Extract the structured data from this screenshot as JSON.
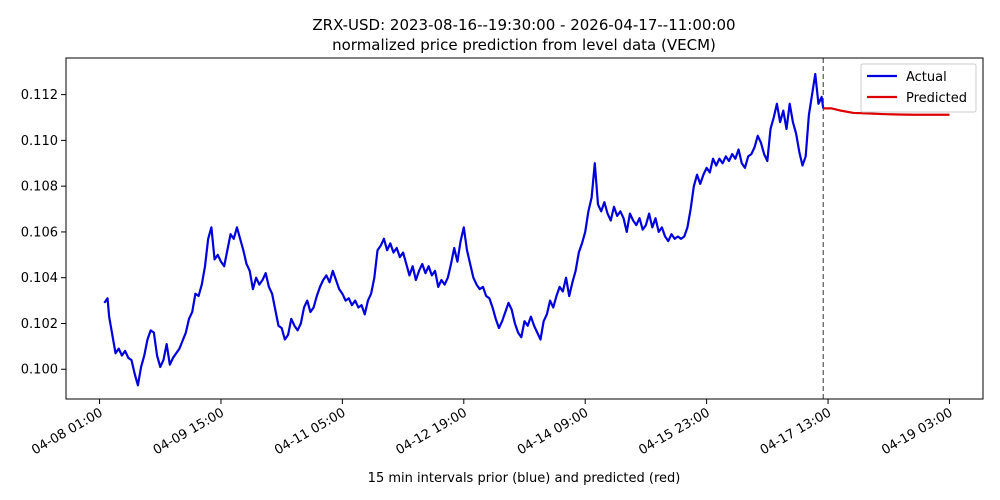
{
  "chart_data": {
    "type": "line",
    "title": "ZRX-USD: 2023-08-16--19:30:00 - 2026-04-17--11:00:00",
    "subtitle": "normalized price prediction from level data (VECM)",
    "xlabel": "15 min intervals prior (blue) and predicted (red)",
    "ylabel": "",
    "x_ticks": [
      "04-08 01:00",
      "04-09 15:00",
      "04-11 05:00",
      "04-12 19:00",
      "04-14 09:00",
      "04-15 23:00",
      "04-17 13:00",
      "04-19 03:00"
    ],
    "x_tick_hours": [
      0,
      38,
      76,
      114,
      152,
      190,
      228,
      266
    ],
    "xlim_hours": [
      -10.5,
      276.5
    ],
    "y_ticks": [
      "0.100",
      "0.102",
      "0.104",
      "0.106",
      "0.108",
      "0.110",
      "0.112"
    ],
    "y_tick_values": [
      0.1,
      0.102,
      0.104,
      0.106,
      0.108,
      0.11,
      0.112
    ],
    "ylim": [
      0.0987,
      0.1136
    ],
    "forecast_start_hour": 226.5,
    "legend": {
      "position": "top-right",
      "entries": [
        "Actual",
        "Predicted"
      ]
    },
    "colors": {
      "actual": "#0000dd",
      "predicted": "#dd0000",
      "divider": "#555555"
    },
    "series": [
      {
        "name": "Actual",
        "points": [
          [
            1.5,
            0.1029
          ],
          [
            2.5,
            0.1031
          ],
          [
            3,
            0.1023
          ],
          [
            4,
            0.1015
          ],
          [
            5,
            0.1007
          ],
          [
            6,
            0.1009
          ],
          [
            7,
            0.1006
          ],
          [
            8,
            0.1008
          ],
          [
            9,
            0.1005
          ],
          [
            10,
            0.1004
          ],
          [
            11,
            0.0998
          ],
          [
            12,
            0.0993
          ],
          [
            13,
            0.1001
          ],
          [
            14,
            0.1006
          ],
          [
            15,
            0.1013
          ],
          [
            16,
            0.1017
          ],
          [
            17,
            0.1016
          ],
          [
            18,
            0.1006
          ],
          [
            19,
            0.1001
          ],
          [
            20,
            0.1004
          ],
          [
            21,
            0.1011
          ],
          [
            22,
            0.1002
          ],
          [
            23,
            0.1005
          ],
          [
            25,
            0.1009
          ],
          [
            27,
            0.1016
          ],
          [
            28,
            0.1022
          ],
          [
            29,
            0.1025
          ],
          [
            30,
            0.1033
          ],
          [
            31,
            0.1032
          ],
          [
            32,
            0.1037
          ],
          [
            33,
            0.1045
          ],
          [
            34,
            0.1057
          ],
          [
            35,
            0.1062
          ],
          [
            36,
            0.1048
          ],
          [
            37,
            0.105
          ],
          [
            38,
            0.1047
          ],
          [
            39,
            0.1045
          ],
          [
            40,
            0.1052
          ],
          [
            41,
            0.1059
          ],
          [
            42,
            0.1057
          ],
          [
            43,
            0.1062
          ],
          [
            44,
            0.1057
          ],
          [
            45,
            0.1052
          ],
          [
            46,
            0.1046
          ],
          [
            47,
            0.1043
          ],
          [
            48,
            0.1035
          ],
          [
            49,
            0.104
          ],
          [
            50,
            0.1037
          ],
          [
            51,
            0.1039
          ],
          [
            52,
            0.1042
          ],
          [
            53,
            0.1036
          ],
          [
            54,
            0.1033
          ],
          [
            55,
            0.1026
          ],
          [
            56,
            0.1019
          ],
          [
            57,
            0.1018
          ],
          [
            58,
            0.1013
          ],
          [
            59,
            0.1015
          ],
          [
            60,
            0.1022
          ],
          [
            61,
            0.1019
          ],
          [
            62,
            0.1017
          ],
          [
            63,
            0.102
          ],
          [
            64,
            0.1027
          ],
          [
            65,
            0.103
          ],
          [
            66,
            0.1025
          ],
          [
            67,
            0.1027
          ],
          [
            68,
            0.1032
          ],
          [
            69,
            0.1036
          ],
          [
            70,
            0.1039
          ],
          [
            71,
            0.1041
          ],
          [
            72,
            0.1038
          ],
          [
            73,
            0.1043
          ],
          [
            74,
            0.1039
          ],
          [
            75,
            0.1035
          ],
          [
            76,
            0.1033
          ],
          [
            77,
            0.103
          ],
          [
            78,
            0.1031
          ],
          [
            79,
            0.1028
          ],
          [
            80,
            0.103
          ],
          [
            81,
            0.1027
          ],
          [
            82,
            0.1028
          ],
          [
            83,
            0.1024
          ],
          [
            84,
            0.103
          ],
          [
            85,
            0.1033
          ],
          [
            86,
            0.104
          ],
          [
            87,
            0.1052
          ],
          [
            88,
            0.1054
          ],
          [
            89,
            0.1057
          ],
          [
            90,
            0.1052
          ],
          [
            91,
            0.1055
          ],
          [
            92,
            0.1051
          ],
          [
            93,
            0.1053
          ],
          [
            94,
            0.1049
          ],
          [
            95,
            0.1051
          ],
          [
            96,
            0.1046
          ],
          [
            97,
            0.1041
          ],
          [
            98,
            0.1045
          ],
          [
            99,
            0.1039
          ],
          [
            100,
            0.1043
          ],
          [
            101,
            0.1046
          ],
          [
            102,
            0.1042
          ],
          [
            103,
            0.1045
          ],
          [
            104,
            0.1041
          ],
          [
            105,
            0.1043
          ],
          [
            106,
            0.1036
          ],
          [
            107,
            0.1039
          ],
          [
            108,
            0.1037
          ],
          [
            109,
            0.104
          ],
          [
            110,
            0.1046
          ],
          [
            111,
            0.1053
          ],
          [
            112,
            0.1047
          ],
          [
            113,
            0.1056
          ],
          [
            114,
            0.1062
          ],
          [
            115,
            0.1052
          ],
          [
            116,
            0.1046
          ],
          [
            117,
            0.104
          ],
          [
            118,
            0.1037
          ],
          [
            119,
            0.1035
          ],
          [
            120,
            0.1036
          ],
          [
            121,
            0.1032
          ],
          [
            122,
            0.1031
          ],
          [
            123,
            0.1027
          ],
          [
            124,
            0.1022
          ],
          [
            125,
            0.1018
          ],
          [
            126,
            0.1021
          ],
          [
            127,
            0.1025
          ],
          [
            128,
            0.1029
          ],
          [
            129,
            0.1026
          ],
          [
            130,
            0.102
          ],
          [
            131,
            0.1016
          ],
          [
            132,
            0.1014
          ],
          [
            133,
            0.1021
          ],
          [
            134,
            0.1019
          ],
          [
            135,
            0.1023
          ],
          [
            136,
            0.1019
          ],
          [
            137,
            0.1016
          ],
          [
            138,
            0.1013
          ],
          [
            139,
            0.1021
          ],
          [
            140,
            0.1024
          ],
          [
            141,
            0.103
          ],
          [
            142,
            0.1027
          ],
          [
            143,
            0.1032
          ],
          [
            144,
            0.1036
          ],
          [
            145,
            0.1034
          ],
          [
            146,
            0.104
          ],
          [
            147,
            0.1032
          ],
          [
            148,
            0.1038
          ],
          [
            149,
            0.1043
          ],
          [
            150,
            0.1051
          ],
          [
            151,
            0.1055
          ],
          [
            152,
            0.106
          ],
          [
            153,
            0.1069
          ],
          [
            154,
            0.1075
          ],
          [
            155,
            0.109
          ],
          [
            156,
            0.1072
          ],
          [
            157,
            0.1069
          ],
          [
            158,
            0.1073
          ],
          [
            159,
            0.1068
          ],
          [
            160,
            0.1065
          ],
          [
            161,
            0.1071
          ],
          [
            162,
            0.1067
          ],
          [
            163,
            0.1069
          ],
          [
            164,
            0.1066
          ],
          [
            165,
            0.106
          ],
          [
            166,
            0.1068
          ],
          [
            167,
            0.1065
          ],
          [
            168,
            0.1063
          ],
          [
            169,
            0.1066
          ],
          [
            170,
            0.1061
          ],
          [
            171,
            0.1063
          ],
          [
            172,
            0.1068
          ],
          [
            173,
            0.1062
          ],
          [
            174,
            0.1066
          ],
          [
            175,
            0.106
          ],
          [
            176,
            0.1062
          ],
          [
            177,
            0.1058
          ],
          [
            178,
            0.1056
          ],
          [
            179,
            0.1059
          ],
          [
            180,
            0.1057
          ],
          [
            181,
            0.1058
          ],
          [
            182,
            0.1057
          ],
          [
            183,
            0.1058
          ],
          [
            184,
            0.1062
          ],
          [
            185,
            0.107
          ],
          [
            186,
            0.108
          ],
          [
            187,
            0.1085
          ],
          [
            188,
            0.1081
          ],
          [
            189,
            0.1085
          ],
          [
            190,
            0.1088
          ],
          [
            191,
            0.1086
          ],
          [
            192,
            0.1092
          ],
          [
            193,
            0.1089
          ],
          [
            194,
            0.1092
          ],
          [
            195,
            0.109
          ],
          [
            196,
            0.1093
          ],
          [
            197,
            0.1091
          ],
          [
            198,
            0.1094
          ],
          [
            199,
            0.1092
          ],
          [
            200,
            0.1096
          ],
          [
            201,
            0.109
          ],
          [
            202,
            0.1088
          ],
          [
            203,
            0.1093
          ],
          [
            204,
            0.1094
          ],
          [
            205,
            0.1097
          ],
          [
            206,
            0.1102
          ],
          [
            207,
            0.1099
          ],
          [
            208,
            0.1094
          ],
          [
            209,
            0.1091
          ],
          [
            210,
            0.1105
          ],
          [
            211,
            0.111
          ],
          [
            212,
            0.1116
          ],
          [
            213,
            0.1108
          ],
          [
            214,
            0.1113
          ],
          [
            215,
            0.1105
          ],
          [
            216,
            0.1116
          ],
          [
            217,
            0.1108
          ],
          [
            218,
            0.1103
          ],
          [
            219,
            0.1095
          ],
          [
            220,
            0.1089
          ],
          [
            221,
            0.1093
          ],
          [
            222,
            0.1111
          ],
          [
            223,
            0.112
          ],
          [
            224,
            0.1129
          ],
          [
            225,
            0.1116
          ],
          [
            226,
            0.1119
          ],
          [
            226.5,
            0.1114
          ]
        ]
      },
      {
        "name": "Predicted",
        "points": [
          [
            226.5,
            0.1114
          ],
          [
            229,
            0.1114
          ],
          [
            232,
            0.1113
          ],
          [
            236,
            0.1112
          ],
          [
            240,
            0.11118
          ],
          [
            245,
            0.11115
          ],
          [
            250,
            0.11113
          ],
          [
            255,
            0.11112
          ],
          [
            260,
            0.11112
          ],
          [
            266,
            0.11112
          ]
        ]
      }
    ]
  }
}
